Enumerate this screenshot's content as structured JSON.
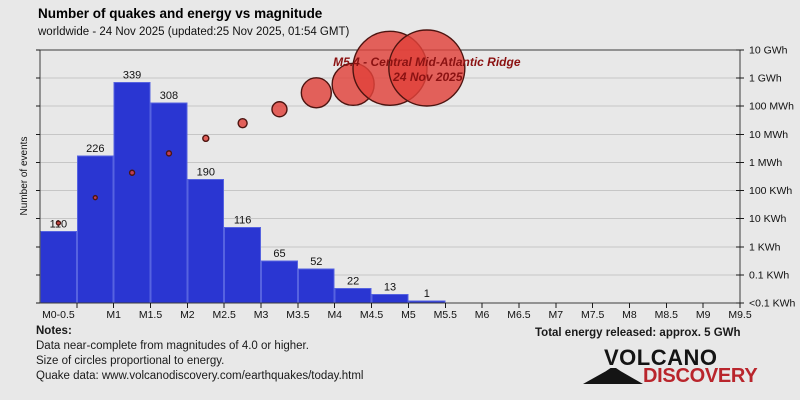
{
  "header": {
    "title": "Number of quakes and energy vs magnitude",
    "subtitle": "worldwide - 24 Nov 2025 (updated:25 Nov 2025, 01:54 GMT)"
  },
  "chart_data": {
    "type": "bar",
    "title": "Number of quakes and energy vs magnitude",
    "ylabel": "Number of events",
    "categories": [
      "M0-0.5",
      "M0.5-1",
      "M1-1.5",
      "M1.5-2",
      "M2-2.5",
      "M2.5-3",
      "M3-3.5",
      "M3.5-4",
      "M4-4.5",
      "M4.5-5",
      "M5-5.5"
    ],
    "values": [
      110,
      226,
      339,
      308,
      190,
      116,
      65,
      52,
      22,
      13,
      1
    ],
    "x_tick_labels": [
      "M0-0.5",
      "M1",
      "M1.5",
      "M2",
      "M2.5",
      "M3",
      "M3.5",
      "M4",
      "M4.5",
      "M5",
      "M5.5",
      "M6",
      "M6.5",
      "M7",
      "M7.5",
      "M8",
      "M8.5",
      "M9",
      "M9.5"
    ],
    "right_axis_tick_labels": [
      "10 GWh",
      "1 GWh",
      "100 MWh",
      "10 MWh",
      "1 MWh",
      "100 KWh",
      "10 KWh",
      "1 KWh",
      "0.1 KWh",
      "<0.1 KWh"
    ],
    "right_axis_range_kwh": [
      0.1,
      10000000
    ],
    "grid": true,
    "bubbles": {
      "description": "energy released per magnitude bin, plotted on log right axis, circle size proportional to energy",
      "energy_kwh": [
        7,
        56,
        430,
        2100,
        7200,
        25000,
        78000,
        300000,
        600000,
        2240000,
        2290000
      ],
      "radius_px": [
        2,
        2,
        2.5,
        2.5,
        3,
        4.5,
        7.5,
        15,
        21,
        37,
        38
      ]
    },
    "annotation": {
      "line1": "M5.4 - Central Mid-Atlantic Ridge",
      "line2": "24 Nov 2025"
    }
  },
  "notes": {
    "heading": "Notes:",
    "lines": [
      "Data near-complete from magnitudes of 4.0 or higher.",
      "Size of circles proportional to energy.",
      "Quake data: www.volcanodiscovery.com/earthquakes/today.html"
    ]
  },
  "footer": {
    "total_energy": "Total energy released: approx. 5 GWh"
  },
  "logo": {
    "word1": "VOLCANO",
    "word2": "DISCOVERY"
  },
  "colors": {
    "background": "#e8e8e8",
    "bar_fill": "#2a36d2",
    "bar_stroke": "#5663e0",
    "bubble_fill": "#e1423a",
    "bubble_stroke": "#4d1410",
    "annotation_text": "#8b1212",
    "grid": "#c6c6c6",
    "frame": "#3c3c3c",
    "tick": "#1a1a1a",
    "text": "#111111",
    "logo_red": "#b9252c"
  }
}
